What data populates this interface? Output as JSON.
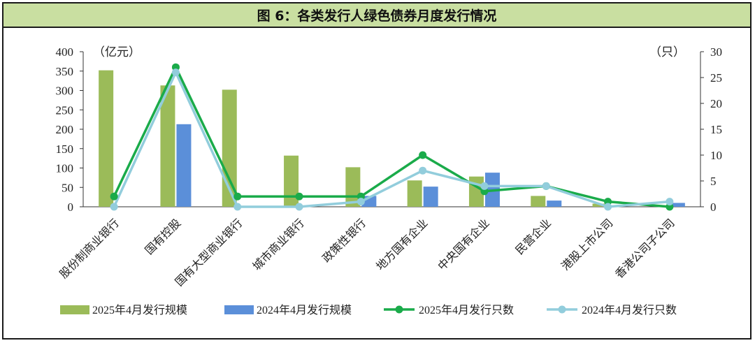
{
  "title": "图 6：各类发行人绿色债券月度发行情况",
  "colors": {
    "bar2025": "#9bbb59",
    "bar2024": "#5b8fd9",
    "line2025": "#1aab4a",
    "line2024": "#92cddc"
  },
  "chart_data": {
    "type": "bar",
    "combo": "bar+line (dual axis)",
    "y_left": {
      "unit": "（亿元）",
      "ylim": [
        0,
        400
      ],
      "ticks": [
        "0",
        "50",
        "100",
        "150",
        "200",
        "250",
        "300",
        "350",
        "400"
      ]
    },
    "y_right": {
      "unit": "（只）",
      "ylim": [
        0,
        30
      ],
      "ticks": [
        "0",
        "5",
        "10",
        "15",
        "20",
        "25",
        "30"
      ]
    },
    "categories": [
      "股份制商业银行",
      "国有控股",
      "国有大型商业银行",
      "城市商业银行",
      "政策性银行",
      "地方国有企业",
      "中央国有企业",
      "民营企业",
      "港股上市公司",
      "香港公司子公司"
    ],
    "series": [
      {
        "name": "2025年4月发行规模",
        "type": "bar",
        "axis": "left",
        "values": [
          352,
          313,
          302,
          132,
          102,
          68,
          78,
          28,
          8,
          2
        ]
      },
      {
        "name": "2024年4月发行规模",
        "type": "bar",
        "axis": "left",
        "values": [
          0,
          213,
          0,
          0,
          28,
          52,
          88,
          16,
          0,
          10
        ]
      },
      {
        "name": "2025年4月发行只数",
        "type": "line",
        "axis": "right",
        "values": [
          2,
          27,
          2,
          2,
          2,
          10,
          3,
          4,
          1,
          0
        ]
      },
      {
        "name": "2024年4月发行只数",
        "type": "line",
        "axis": "right",
        "values": [
          0,
          26,
          0,
          0,
          1,
          7,
          4,
          4,
          0,
          1
        ]
      }
    ],
    "legend_position": "bottom",
    "grid": false
  }
}
